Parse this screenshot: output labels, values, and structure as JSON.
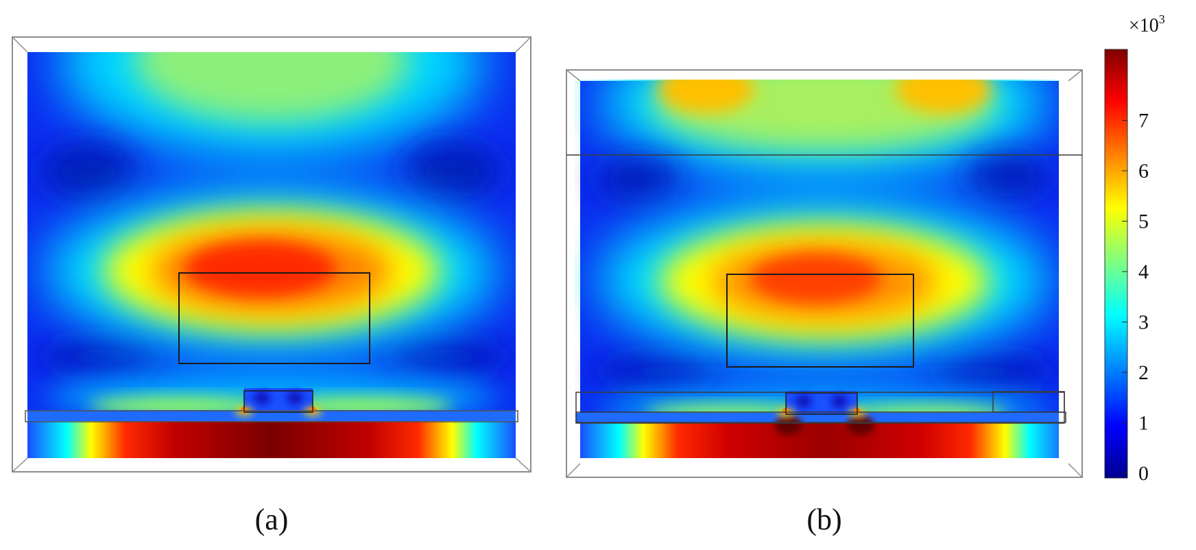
{
  "panels": [
    {
      "label": "(a)"
    },
    {
      "label": "(b)"
    }
  ],
  "colorbar": {
    "multiplier": "×10",
    "exponent": "3",
    "ticks": [
      "0",
      "1",
      "2",
      "3",
      "4",
      "5",
      "6",
      "7"
    ],
    "colormap": "jet"
  }
}
